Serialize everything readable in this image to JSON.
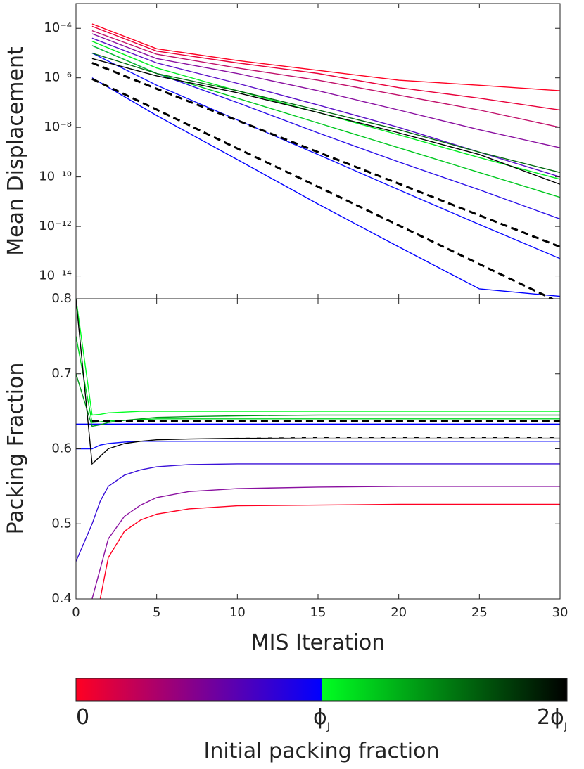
{
  "chart_data": [
    {
      "type": "line",
      "ylabel": "Mean Displacement",
      "log_y": true,
      "xlim": [
        0,
        30
      ],
      "xticks": [
        0,
        5,
        10,
        15,
        20,
        25,
        30
      ],
      "ylim": [
        1.2e-15,
        0.001
      ],
      "yticks": [
        {
          "value": 0.0001,
          "label": "10⁻⁴"
        },
        {
          "value": 1e-06,
          "label": "10⁻⁶"
        },
        {
          "value": 1e-08,
          "label": "10⁻⁸"
        },
        {
          "value": 1e-10,
          "label": "10⁻¹⁰"
        },
        {
          "value": 1e-12,
          "label": "10⁻¹²"
        },
        {
          "value": 1e-14,
          "label": "10⁻¹⁴"
        }
      ],
      "x": [
        1,
        5,
        10,
        15,
        20,
        25,
        30
      ],
      "series": [
        {
          "color": "#ff0022",
          "values": [
            0.00015,
            1.5e-05,
            5e-06,
            2e-06,
            8e-07,
            5e-07,
            3e-07
          ]
        },
        {
          "color": "#e8003a",
          "values": [
            0.00012,
            1.2e-05,
            4e-06,
            1.5e-06,
            4e-07,
            1.5e-07,
            5e-08
          ]
        },
        {
          "color": "#c0106a",
          "values": [
            8e-05,
            9e-06,
            2.5e-06,
            8e-07,
            2e-07,
            5e-08,
            1e-08
          ]
        },
        {
          "color": "#8a10a0",
          "values": [
            6e-05,
            6e-06,
            1.5e-06,
            3e-07,
            5e-08,
            8e-09,
            1.5e-09
          ]
        },
        {
          "color": "#5a10c8",
          "values": [
            4e-05,
            4e-06,
            6e-07,
            8e-08,
            1e-08,
            1e-09,
            1e-10
          ]
        },
        {
          "color": "#2a10e8",
          "values": [
            2e-05,
            1.5e-06,
            1e-07,
            6e-09,
            4e-10,
            3e-11,
            2e-12
          ]
        },
        {
          "color": "#1010ff",
          "values": [
            1e-05,
            5e-07,
            2e-08,
            8e-10,
            3e-11,
            1.2e-12,
            5e-14
          ]
        },
        {
          "color": "#0000ff",
          "values": [
            1e-06,
            3e-08,
            5e-10,
            8e-12,
            1.5e-13,
            3e-15,
            1.5e-15
          ]
        },
        {
          "color": "#00ee22",
          "values": [
            3e-05,
            2.5e-06,
            3e-07,
            4e-08,
            5e-09,
            6e-10,
            8e-11
          ]
        },
        {
          "color": "#00c820",
          "values": [
            2e-05,
            1.5e-06,
            1.5e-07,
            1.5e-08,
            1.5e-09,
            1.5e-10,
            1.5e-11
          ]
        },
        {
          "color": "#006a10",
          "values": [
            1e-05,
            1.5e-06,
            3e-07,
            5e-08,
            8e-09,
            1e-09,
            1.5e-10
          ]
        },
        {
          "color": "#000000",
          "values": [
            6e-06,
            1.2e-06,
            2.5e-07,
            4e-08,
            6e-09,
            8e-10,
            5e-11
          ]
        },
        {
          "color": "#000000",
          "dashed": true,
          "values": [
            4e-06,
            3.6e-07,
            1.9e-08,
            1e-09,
            5.3e-11,
            2.8e-12,
            1.5e-13
          ]
        },
        {
          "color": "#000000",
          "dashed": true,
          "values": [
            9e-07,
            5.2e-08,
            1.4e-09,
            4e-11,
            1.1e-12,
            3e-14,
            8.3e-16
          ]
        }
      ]
    },
    {
      "type": "line",
      "ylabel": "Packing Fraction",
      "xlabel": "MIS Iteration",
      "xlim": [
        0,
        30
      ],
      "xticks": [
        0,
        5,
        10,
        15,
        20,
        25,
        30
      ],
      "ylim": [
        0.4,
        0.8
      ],
      "yticks": [
        0.4,
        0.5,
        0.6,
        0.7,
        0.8
      ],
      "x": [
        0,
        1,
        1.5,
        2,
        3,
        4,
        5,
        7,
        10,
        15,
        20,
        30
      ],
      "series": [
        {
          "color": "#ff0022",
          "values": [
            null,
            null,
            0.4,
            0.455,
            0.49,
            0.505,
            0.513,
            0.52,
            0.524,
            0.525,
            0.526,
            0.526
          ]
        },
        {
          "color": "#8a10a0",
          "values": [
            null,
            0.4,
            0.44,
            0.48,
            0.51,
            0.525,
            0.535,
            0.543,
            0.547,
            0.549,
            0.55,
            0.55
          ]
        },
        {
          "color": "#3a10d8",
          "values": [
            0.45,
            0.5,
            0.53,
            0.55,
            0.565,
            0.572,
            0.576,
            0.579,
            0.58,
            0.58,
            0.58,
            0.58
          ]
        },
        {
          "color": "#1010ff",
          "values": [
            0.6,
            0.6,
            0.605,
            0.607,
            0.609,
            0.61,
            0.61,
            0.61,
            0.61,
            0.61,
            0.61,
            0.61
          ]
        },
        {
          "color": "#0000ff",
          "values": [
            0.633,
            0.633,
            0.633,
            0.633,
            0.633,
            0.633,
            0.633,
            0.633,
            0.633,
            0.633,
            0.633,
            0.633
          ]
        },
        {
          "color": "#00ff22",
          "values": [
            0.8,
            0.645,
            0.646,
            0.648,
            0.649,
            0.65,
            0.65,
            0.65,
            0.65,
            0.65,
            0.65,
            0.65
          ]
        },
        {
          "color": "#00d820",
          "values": [
            0.75,
            0.635,
            0.636,
            0.637,
            0.638,
            0.639,
            0.64,
            0.64,
            0.64,
            0.64,
            0.64,
            0.64
          ]
        },
        {
          "color": "#009a18",
          "values": [
            0.7,
            0.63,
            0.632,
            0.635,
            0.638,
            0.64,
            0.642,
            0.643,
            0.644,
            0.645,
            0.645,
            0.645
          ]
        },
        {
          "color": "#000000",
          "values": [
            0.8,
            0.58,
            0.59,
            0.6,
            0.607,
            0.61,
            0.612,
            0.613,
            0.614,
            0.615,
            0.615,
            0.615
          ]
        },
        {
          "color": "#000000",
          "dashed": true,
          "values": [
            null,
            0.637,
            0.637,
            0.637,
            0.637,
            0.637,
            0.637,
            0.637,
            0.637,
            0.637,
            0.637,
            0.637
          ]
        },
        {
          "color": "#ffffff",
          "dashed": true,
          "values": [
            null,
            0.616,
            0.616,
            0.616,
            0.616,
            0.616,
            0.616,
            0.616,
            0.616,
            0.616,
            0.616,
            0.616
          ]
        }
      ]
    }
  ],
  "colorbar": {
    "label": "Initial packing fraction",
    "ticks": [
      {
        "text": "0"
      },
      {
        "text": "ϕ",
        "sub": "J"
      },
      {
        "text": "2ϕ",
        "sub": "J"
      }
    ],
    "colors": [
      "#ff0022",
      "#0000ff",
      "#00ff22",
      "#000000"
    ]
  }
}
